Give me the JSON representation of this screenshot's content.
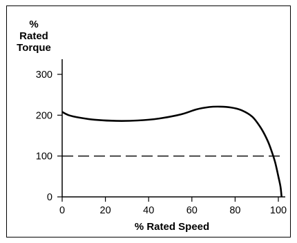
{
  "chart_data": {
    "type": "line",
    "ylabel_lines": [
      "%",
      "Rated",
      "Torque"
    ],
    "xlabel": "% Rated Speed",
    "xlim": [
      0,
      100
    ],
    "ylim": [
      0,
      300
    ],
    "x_ticks": [
      0,
      20,
      40,
      60,
      80,
      100
    ],
    "y_ticks": [
      0,
      100,
      200,
      300
    ],
    "grid": false,
    "series": [
      {
        "style": "solid",
        "x": [
          0,
          3,
          8,
          15,
          25,
          35,
          45,
          55,
          62,
          68,
          73,
          78,
          83,
          88,
          92,
          95,
          97,
          98.5,
          100,
          101,
          101.5
        ],
        "y": [
          208,
          200,
          194,
          189,
          186,
          187,
          192,
          202,
          214,
          220,
          221,
          219,
          212,
          196,
          168,
          138,
          110,
          85,
          50,
          25,
          0
        ]
      },
      {
        "style": "dashed",
        "x": [
          0,
          101.5
        ],
        "y": [
          100,
          100
        ]
      }
    ]
  }
}
